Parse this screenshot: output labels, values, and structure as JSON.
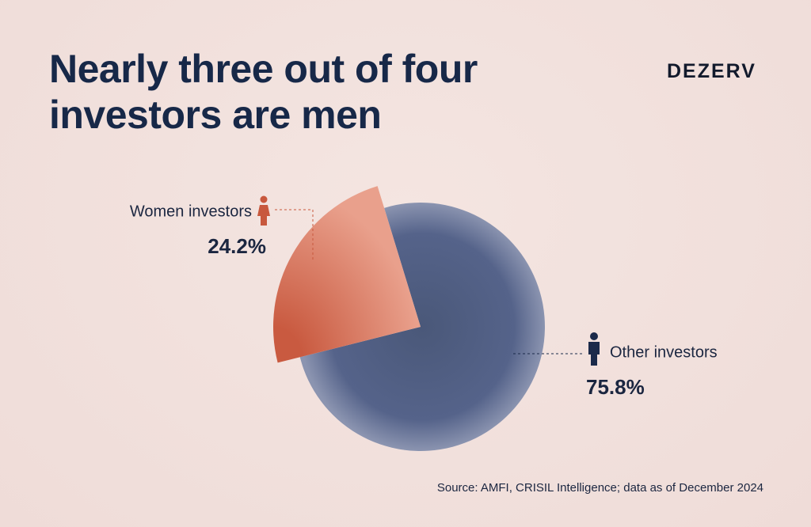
{
  "chart_data": {
    "type": "pie",
    "title": "Nearly three out of four investors are men",
    "brand": "DEZERV",
    "source": "Source: AMFI, CRISIL Intelligence; data as of December 2024",
    "categories": [
      "Women investors",
      "Other investors"
    ],
    "values": [
      24.2,
      75.8
    ],
    "value_labels": [
      "24.2%",
      "75.8%"
    ],
    "colors": [
      "#d5694f",
      "#4f5d7e"
    ]
  }
}
